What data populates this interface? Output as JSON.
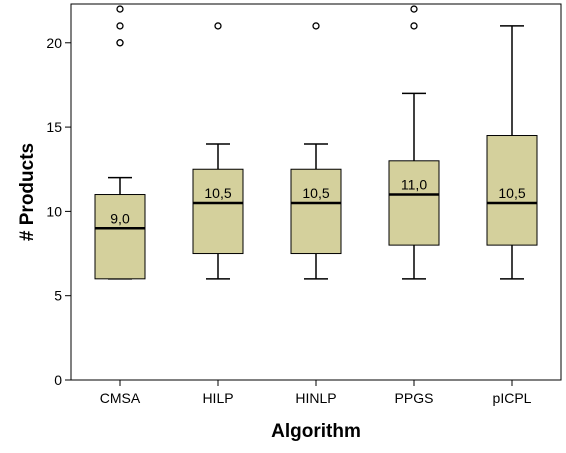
{
  "chart_data": {
    "type": "boxplot",
    "xlabel": "Algorithm",
    "ylabel": "# Products",
    "ylim": [
      0,
      22.3
    ],
    "yticks": [
      0,
      5,
      10,
      15,
      20
    ],
    "grid": false,
    "categories": [
      "CMSA",
      "HILP",
      "HINLP",
      "PPGS",
      "pICPL"
    ],
    "boxes": [
      {
        "category": "CMSA",
        "whisker_low": 6,
        "q1": 6,
        "median": 9,
        "q3": 11,
        "whisker_high": 12,
        "median_label": "9,0",
        "outliers": [
          20,
          20,
          21,
          22
        ]
      },
      {
        "category": "HILP",
        "whisker_low": 6,
        "q1": 7.5,
        "median": 10.5,
        "q3": 12.5,
        "whisker_high": 14,
        "median_label": "10,5",
        "outliers": [
          21
        ]
      },
      {
        "category": "HINLP",
        "whisker_low": 6,
        "q1": 7.5,
        "median": 10.5,
        "q3": 12.5,
        "whisker_high": 14,
        "median_label": "10,5",
        "outliers": [
          21
        ]
      },
      {
        "category": "PPGS",
        "whisker_low": 6,
        "q1": 8,
        "median": 11,
        "q3": 13,
        "whisker_high": 17,
        "median_label": "11,0",
        "outliers": [
          21,
          22
        ]
      },
      {
        "category": "pICPL",
        "whisker_low": 6,
        "q1": 8,
        "median": 10.5,
        "q3": 14.5,
        "whisker_high": 21,
        "median_label": "10,5",
        "outliers": []
      }
    ],
    "colors": {
      "box_fill": "#d4d09c",
      "stroke": "#000000"
    }
  }
}
